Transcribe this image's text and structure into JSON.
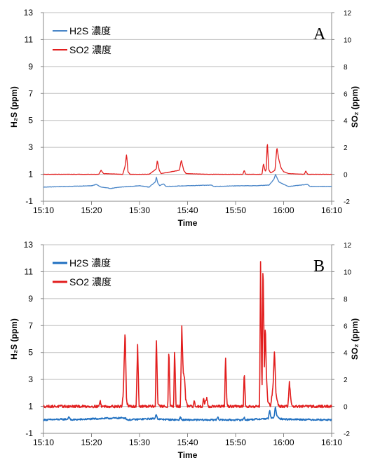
{
  "chart_data": [
    {
      "type": "line",
      "panel_label": "A",
      "xlabel": "Time",
      "ylabel_left": "H₂S (ppm)",
      "ylabel_right": "SO₂ (ppm)",
      "x_ticks": [
        "15:10",
        "15:20",
        "15:30",
        "15:40",
        "15:50",
        "16:00",
        "16:10"
      ],
      "x_range_min": [
        0,
        60
      ],
      "y_left_range": [
        -1,
        13
      ],
      "y_left_ticks": [
        "-1",
        "1",
        "3",
        "5",
        "7",
        "9",
        "11",
        "13"
      ],
      "y_right_range": [
        -2,
        12
      ],
      "y_right_ticks": [
        "-2",
        "0",
        "2",
        "4",
        "6",
        "8",
        "10",
        "12"
      ],
      "grid": "horizontal",
      "legend_position": "top-left",
      "colors": {
        "h2s": "#4a86c8",
        "so2": "#e21e1e",
        "grid": "#bfbfbf"
      },
      "series": [
        {
          "name": "H2S 濃度",
          "axis": "left",
          "color": "#4a86c8",
          "baseline": 0.05,
          "noise": 0.015,
          "points": [
            [
              0,
              0.0
            ],
            [
              10,
              0.1
            ],
            [
              11,
              0.2
            ],
            [
              12,
              0.0
            ],
            [
              14,
              -0.1
            ],
            [
              16,
              0.0
            ],
            [
              20,
              0.1
            ],
            [
              22,
              0.0
            ],
            [
              23.3,
              0.4
            ],
            [
              23.5,
              0.75
            ],
            [
              23.8,
              0.3
            ],
            [
              24.2,
              0.1
            ],
            [
              25,
              0.25
            ],
            [
              25.5,
              0.05
            ],
            [
              30,
              0.1
            ],
            [
              35,
              0.15
            ],
            [
              35.5,
              0.05
            ],
            [
              41,
              0.1
            ],
            [
              44,
              0.1
            ],
            [
              47,
              0.15
            ],
            [
              48,
              0.6
            ],
            [
              48.3,
              0.95
            ],
            [
              48.6,
              0.7
            ],
            [
              49,
              0.4
            ],
            [
              50,
              0.2
            ],
            [
              51,
              0.05
            ],
            [
              55,
              0.2
            ],
            [
              55.5,
              0.05
            ],
            [
              60,
              0.05
            ]
          ]
        },
        {
          "name": "SO2 濃度",
          "axis": "right",
          "color": "#e21e1e",
          "baseline": 0.0,
          "noise": 0.01,
          "points": [
            [
              0,
              0.0
            ],
            [
              11.5,
              0.0
            ],
            [
              12,
              0.3
            ],
            [
              12.5,
              0.05
            ],
            [
              16.5,
              0.0
            ],
            [
              17,
              0.6
            ],
            [
              17.3,
              1.5
            ],
            [
              17.6,
              0.2
            ],
            [
              18,
              0.0
            ],
            [
              22,
              0.0
            ],
            [
              23.5,
              0.4
            ],
            [
              23.7,
              1.05
            ],
            [
              24.1,
              0.3
            ],
            [
              24.5,
              0.05
            ],
            [
              28.3,
              0.3
            ],
            [
              28.7,
              1.05
            ],
            [
              29.2,
              0.3
            ],
            [
              29.7,
              0.05
            ],
            [
              34,
              0.0
            ],
            [
              41.5,
              0.0
            ],
            [
              41.8,
              0.3
            ],
            [
              42.1,
              0.0
            ],
            [
              45.5,
              0.0
            ],
            [
              45.8,
              0.8
            ],
            [
              46.2,
              0.2
            ],
            [
              46.4,
              0.4
            ],
            [
              46.6,
              2.5
            ],
            [
              46.9,
              0.35
            ],
            [
              47.3,
              0.1
            ],
            [
              48.2,
              0.3
            ],
            [
              48.6,
              2.0
            ],
            [
              49,
              1.1
            ],
            [
              49.5,
              0.45
            ],
            [
              50,
              0.2
            ],
            [
              51,
              0.05
            ],
            [
              54.3,
              0.0
            ],
            [
              54.6,
              0.25
            ],
            [
              55,
              0.0
            ],
            [
              60,
              0.0
            ]
          ]
        }
      ]
    },
    {
      "type": "line",
      "panel_label": "B",
      "xlabel": "Time",
      "ylabel_left": "H₂S (ppm)",
      "ylabel_right": "SO₂ (ppm)",
      "x_ticks": [
        "15:10",
        "15:20",
        "15:30",
        "15:40",
        "15:50",
        "16:00",
        "16:10"
      ],
      "x_range_min": [
        0,
        60
      ],
      "y_left_range": [
        -1,
        13
      ],
      "y_left_ticks": [
        "-1",
        "1",
        "3",
        "5",
        "7",
        "9",
        "11",
        "13"
      ],
      "y_right_range": [
        -2,
        12
      ],
      "y_right_ticks": [
        "-2",
        "0",
        "2",
        "4",
        "6",
        "8",
        "10",
        "12"
      ],
      "grid": "horizontal",
      "legend_position": "top-left",
      "colors": {
        "h2s": "#1f6fc0",
        "so2": "#e21e1e",
        "grid": "#bfbfbf"
      },
      "series": [
        {
          "name": "H2S 濃度",
          "axis": "left",
          "color": "#1f6fc0",
          "baseline": 0.0,
          "noise": 0.06,
          "points": [
            [
              0,
              0.0
            ],
            [
              5,
              0.05
            ],
            [
              5.3,
              0.25
            ],
            [
              5.6,
              0.0
            ],
            [
              12,
              0.1
            ],
            [
              17,
              0.15
            ],
            [
              17.5,
              0.0
            ],
            [
              23.2,
              0.1
            ],
            [
              23.5,
              0.45
            ],
            [
              23.8,
              0.05
            ],
            [
              28.2,
              0.0
            ],
            [
              28.5,
              0.2
            ],
            [
              28.8,
              0.0
            ],
            [
              36,
              0.0
            ],
            [
              36.3,
              0.25
            ],
            [
              36.6,
              0.0
            ],
            [
              41.5,
              0.0
            ],
            [
              41.8,
              0.2
            ],
            [
              42,
              0.0
            ],
            [
              46.8,
              0.1
            ],
            [
              47.1,
              0.7
            ],
            [
              47.4,
              0.1
            ],
            [
              48,
              0.2
            ],
            [
              48.3,
              1.0
            ],
            [
              48.6,
              0.3
            ],
            [
              49,
              0.1
            ],
            [
              50,
              0.05
            ],
            [
              60,
              0.0
            ]
          ]
        },
        {
          "name": "SO2 濃度",
          "axis": "right",
          "color": "#e21e1e",
          "baseline": 0.0,
          "noise": 0.1,
          "points": [
            [
              0,
              0.0
            ],
            [
              11.5,
              0.0
            ],
            [
              11.8,
              0.4
            ],
            [
              12.1,
              0.0
            ],
            [
              16.3,
              0.0
            ],
            [
              16.6,
              0.8
            ],
            [
              17,
              5.8
            ],
            [
              17.3,
              0.3
            ],
            [
              17.7,
              0.0
            ],
            [
              19.3,
              0.0
            ],
            [
              19.6,
              4.6
            ],
            [
              19.9,
              0.0
            ],
            [
              23.3,
              0.0
            ],
            [
              23.5,
              5.3
            ],
            [
              23.8,
              0.3
            ],
            [
              24.2,
              0.0
            ],
            [
              25.9,
              0.0
            ],
            [
              26.1,
              4.4
            ],
            [
              26.4,
              0.0
            ],
            [
              27.1,
              0.0
            ],
            [
              27.3,
              4.4
            ],
            [
              27.6,
              0.0
            ],
            [
              28.5,
              0.0
            ],
            [
              28.8,
              5.9
            ],
            [
              29.1,
              2.5
            ],
            [
              29.4,
              2.1
            ],
            [
              29.6,
              0.5
            ],
            [
              30,
              0.0
            ],
            [
              31.2,
              0.0
            ],
            [
              31.4,
              0.5
            ],
            [
              31.6,
              0.0
            ],
            [
              33.1,
              0.0
            ],
            [
              33.3,
              0.7
            ],
            [
              33.5,
              0.2
            ],
            [
              34,
              0.6
            ],
            [
              34.3,
              0.0
            ],
            [
              37.7,
              0.0
            ],
            [
              37.9,
              3.8
            ],
            [
              38.2,
              0.2
            ],
            [
              38.5,
              0.0
            ],
            [
              41.6,
              0.0
            ],
            [
              41.8,
              2.7
            ],
            [
              42.1,
              0.0
            ],
            [
              45,
              0.0
            ],
            [
              45.2,
              10.8
            ],
            [
              45.5,
              0.5
            ],
            [
              45.7,
              11.0
            ],
            [
              46,
              3.0
            ],
            [
              46.2,
              6.2
            ],
            [
              46.4,
              2.5
            ],
            [
              46.7,
              0.4
            ],
            [
              47.3,
              0.0
            ],
            [
              47.8,
              1.5
            ],
            [
              48.1,
              4.3
            ],
            [
              48.4,
              1.0
            ],
            [
              48.8,
              0.2
            ],
            [
              49.2,
              0.0
            ],
            [
              50.9,
              0.0
            ],
            [
              51.2,
              1.8
            ],
            [
              51.6,
              0.2
            ],
            [
              52,
              0.0
            ],
            [
              60,
              0.0
            ]
          ]
        }
      ]
    }
  ]
}
